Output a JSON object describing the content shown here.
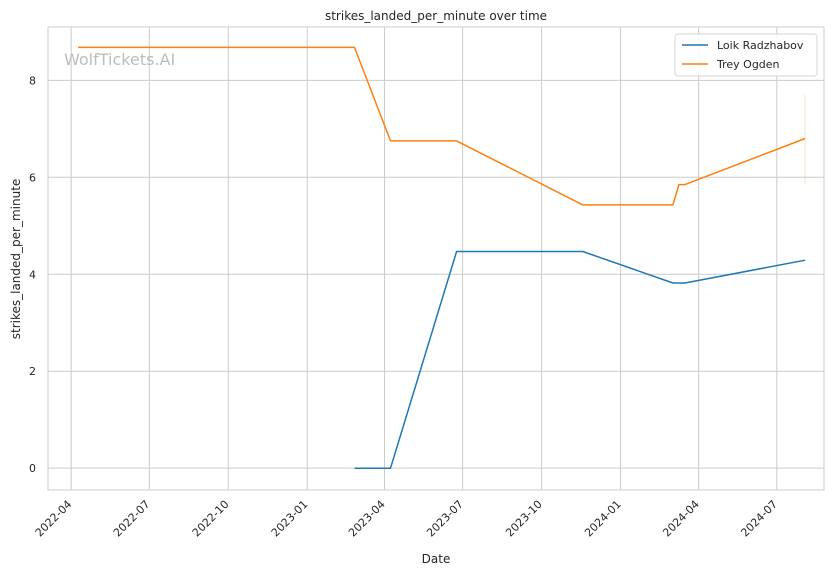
{
  "watermark": "WolfTickets.AI",
  "chart_data": {
    "type": "line",
    "title": "strikes_landed_per_minute over time",
    "xlabel": "Date",
    "ylabel": "strikes_landed_per_minute",
    "x_type": "date",
    "xlim": [
      "2022-03-05",
      "2024-08-25"
    ],
    "ylim": [
      -0.45,
      9.1
    ],
    "x_ticks": [
      "2022-04-01",
      "2022-07-01",
      "2022-10-01",
      "2023-01-01",
      "2023-04-01",
      "2023-07-01",
      "2023-10-01",
      "2024-01-01",
      "2024-04-01",
      "2024-07-01"
    ],
    "x_tick_labels": [
      "2022-04",
      "2022-07",
      "2022-10",
      "2023-01",
      "2023-04",
      "2023-07",
      "2023-10",
      "2024-01",
      "2024-04",
      "2024-07"
    ],
    "y_ticks": [
      0,
      2,
      4,
      6,
      8
    ],
    "y_tick_labels": [
      "0",
      "2",
      "4",
      "6",
      "8"
    ],
    "grid": true,
    "legend_position": "top-right",
    "series": [
      {
        "name": "Loik Radzhabov",
        "color": "#1f77b4",
        "points": [
          {
            "x": "2023-02-25",
            "y": 0
          },
          {
            "x": "2023-04-08",
            "y": 0
          },
          {
            "x": "2023-06-24",
            "y": 4.47
          },
          {
            "x": "2023-11-18",
            "y": 4.47
          },
          {
            "x": "2024-03-02",
            "y": 3.82
          },
          {
            "x": "2024-03-16",
            "y": 3.82
          },
          {
            "x": "2024-08-03",
            "y": 4.29
          }
        ]
      },
      {
        "name": "Trey Ogden",
        "color": "#ff7f0e",
        "points": [
          {
            "x": "2022-04-09",
            "y": 8.68
          },
          {
            "x": "2023-02-25",
            "y": 8.68
          },
          {
            "x": "2023-04-08",
            "y": 6.75
          },
          {
            "x": "2023-06-24",
            "y": 6.75
          },
          {
            "x": "2023-11-18",
            "y": 5.43
          },
          {
            "x": "2024-03-02",
            "y": 5.43
          },
          {
            "x": "2024-03-09",
            "y": 5.85
          },
          {
            "x": "2024-03-16",
            "y": 5.85
          },
          {
            "x": "2024-08-03",
            "y": 6.8
          }
        ],
        "band": {
          "x": "2024-08-03",
          "low": 5.85,
          "high": 7.7
        }
      }
    ]
  }
}
